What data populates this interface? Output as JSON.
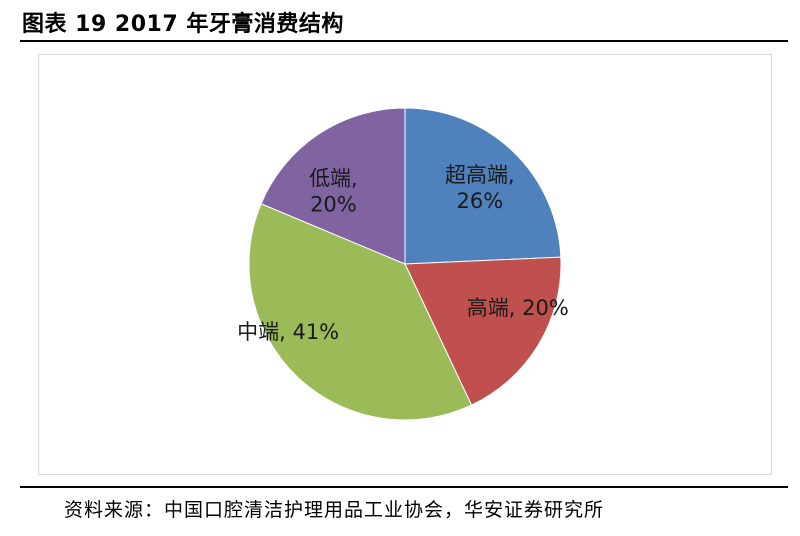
{
  "figure": {
    "title": "图表 19 2017 年牙膏消费结构",
    "source": "资料来源：中国口腔清洁护理用品工业协会，华安证券研究所"
  },
  "chart_data": {
    "type": "pie",
    "title": "",
    "start_angle_deg": 0,
    "direction": "clockwise",
    "series": [
      {
        "name": "",
        "slices": [
          {
            "label": "超高端",
            "value": 26,
            "color": "#4f81bd",
            "label_lines": [
              "超高端,",
              "26%"
            ]
          },
          {
            "label": "高端",
            "value": 20,
            "color": "#c0504d",
            "label_lines": [
              "高端, 20%"
            ]
          },
          {
            "label": "中端",
            "value": 41,
            "color": "#9bbb59",
            "label_lines": [
              "中端, 41%"
            ]
          },
          {
            "label": "低端",
            "value": 20,
            "color": "#8064a2",
            "label_lines": [
              "低端,",
              "20%"
            ]
          }
        ]
      }
    ]
  }
}
